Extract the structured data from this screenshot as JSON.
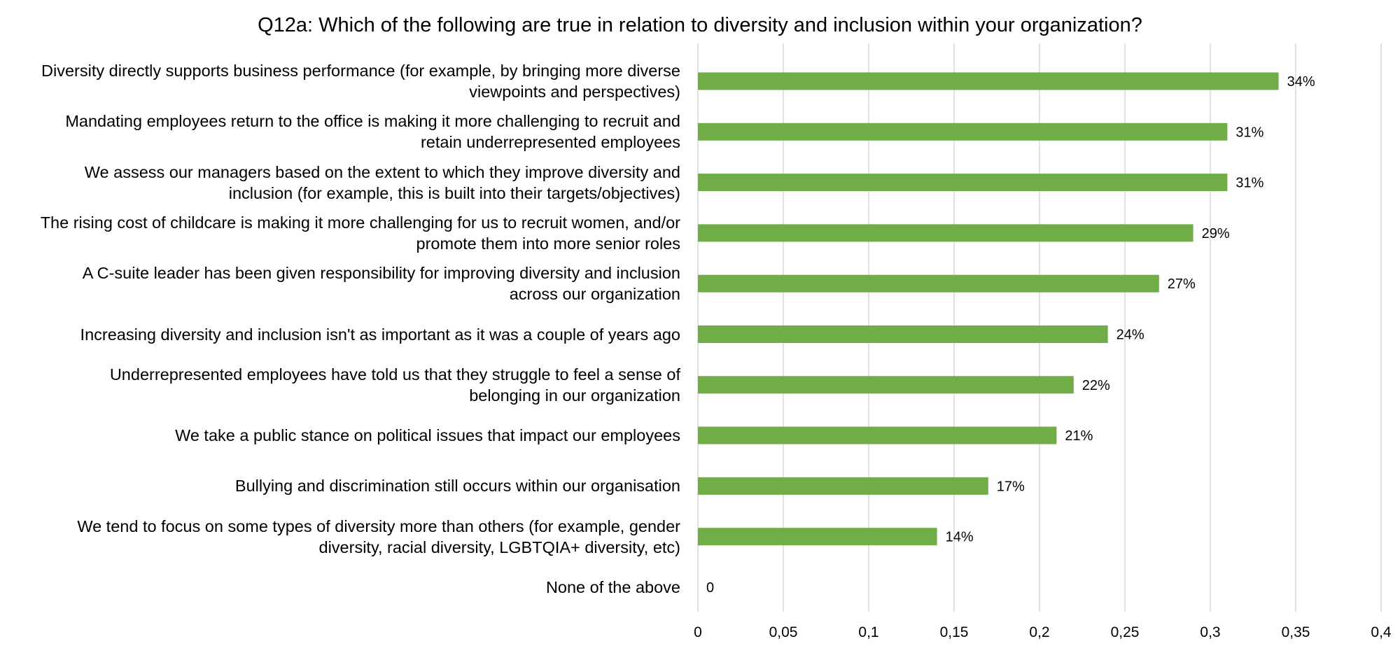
{
  "chart_data": {
    "type": "bar",
    "orientation": "horizontal",
    "title": "Q12a: Which of the following are true in relation to diversity and inclusion within your organization?",
    "xlabel": "",
    "ylabel": "",
    "xlim": [
      0,
      0.4
    ],
    "xticks": [
      "0",
      "0,05",
      "0,1",
      "0,15",
      "0,2",
      "0,25",
      "0,3",
      "0,35",
      "0,4"
    ],
    "grid": true,
    "bar_color": "#70AD47",
    "grid_color": "#D9D9D9",
    "categories": [
      [
        "Diversity directly supports business performance (for example, by bringing more diverse",
        "viewpoints and perspectives)"
      ],
      [
        "Mandating employees return to the office is making it more challenging to recruit and",
        "retain underrepresented employees"
      ],
      [
        "We assess our managers based on the extent to which they improve diversity and",
        "inclusion (for example, this is built into their targets/objectives)"
      ],
      [
        "The rising cost of childcare is making it more challenging for us to recruit women, and/or",
        "promote them into more senior roles"
      ],
      [
        "A C-suite leader has been given responsibility for improving diversity and inclusion",
        "across our organization"
      ],
      [
        "Increasing diversity and inclusion isn't as important as it was a couple of years ago"
      ],
      [
        "Underrepresented employees have told us that they struggle to feel a sense of",
        "belonging in our organization"
      ],
      [
        "We take a public stance on political issues that impact our employees"
      ],
      [
        "Bullying and discrimination still occurs within our organisation"
      ],
      [
        "We tend to focus on some types of diversity more than others (for example, gender",
        "diversity, racial diversity, LGBTQIA+ diversity, etc)"
      ],
      [
        "None of the above"
      ]
    ],
    "values": [
      0.34,
      0.31,
      0.31,
      0.29,
      0.27,
      0.24,
      0.22,
      0.21,
      0.17,
      0.14,
      0
    ],
    "data_labels": [
      "34%",
      "31%",
      "31%",
      "29%",
      "27%",
      "24%",
      "22%",
      "21%",
      "17%",
      "14%",
      "0"
    ]
  }
}
